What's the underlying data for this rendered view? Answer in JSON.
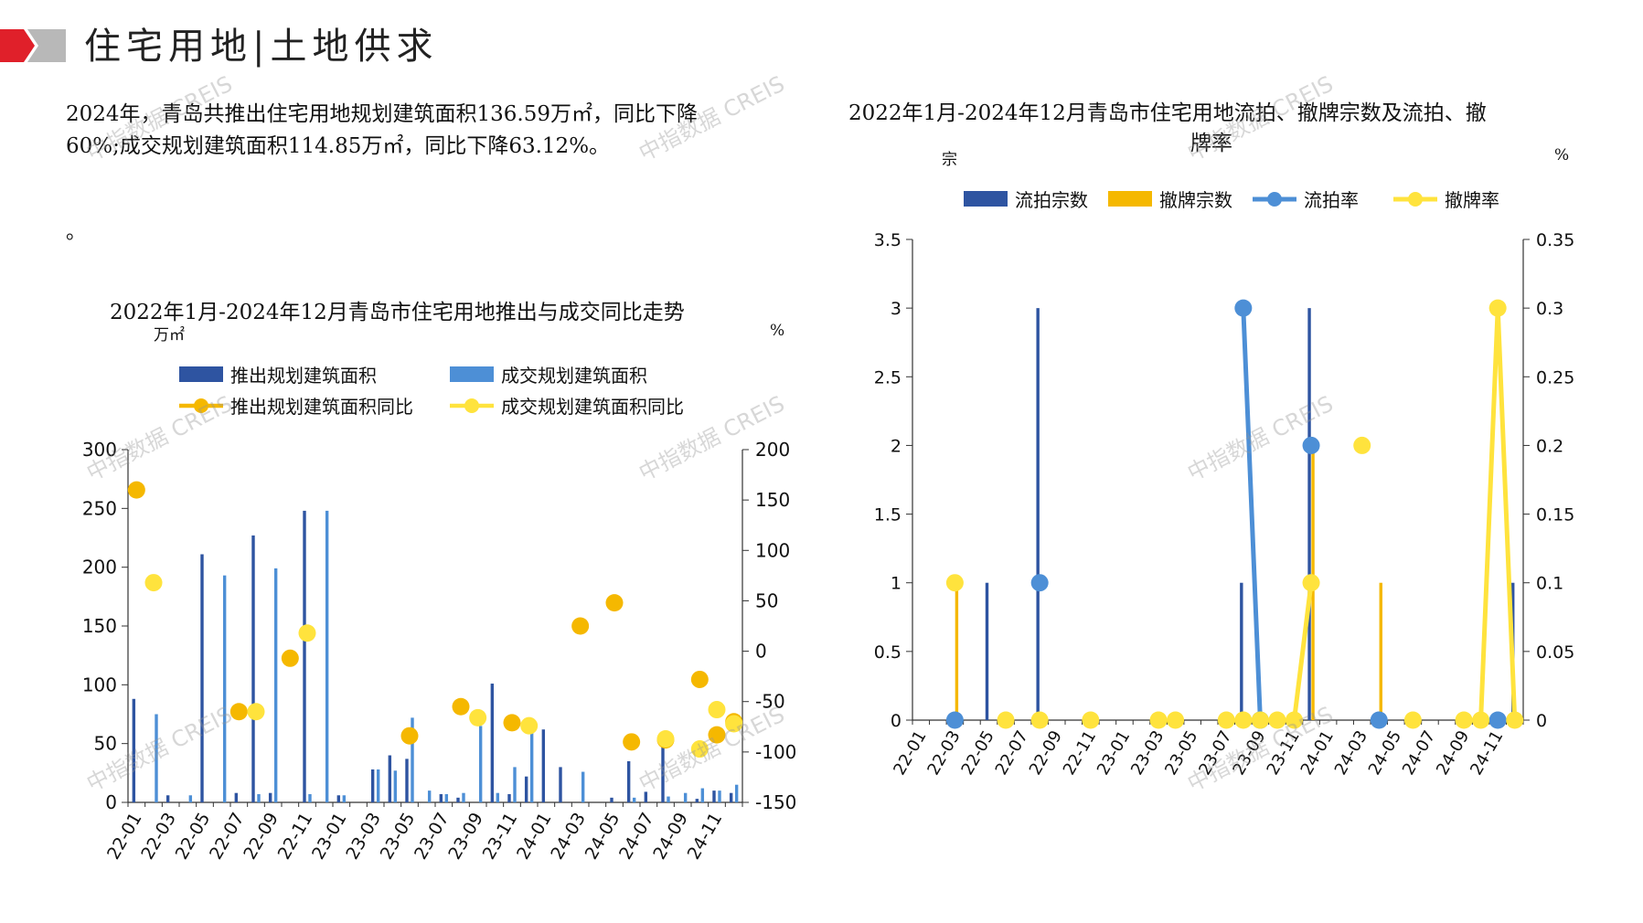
{
  "page": {
    "title": "住宅用地|土地供求",
    "summary": [
      "2024年，青岛共推出住宅用地规划建筑面积136.59万㎡，同比下降",
      "60%;成交规划建筑面积114.85万㎡，同比下降63.12%。"
    ],
    "stray_mark": "。",
    "watermark": "中指数据 CREIS"
  },
  "colors": {
    "dark_blue": "#2e54a1",
    "light_blue": "#4d8fd6",
    "orange": "#f5b800",
    "yellow": "#ffe33d",
    "logo_red": "#e0202a",
    "logo_gray": "#b8b8b8",
    "axis": "#333333"
  },
  "chart_data": [
    {
      "type": "bar",
      "title": "2022年1月-2024年12月青岛市住宅用地推出与成交同比走势",
      "y_unit_left": "万㎡",
      "y_unit_right": "%",
      "ylim_left": [
        0,
        300
      ],
      "yticks_left": [
        "0",
        "50",
        "100",
        "150",
        "200",
        "250",
        "300"
      ],
      "ylim_right": [
        -150,
        200
      ],
      "yticks_right": [
        "-150",
        "-100",
        "-50",
        "0",
        "50",
        "100",
        "150",
        "200"
      ],
      "x_tick_labels": [
        "22-01",
        "22-03",
        "22-05",
        "22-07",
        "22-09",
        "22-11",
        "23-01",
        "23-03",
        "23-05",
        "23-07",
        "23-09",
        "23-11",
        "24-01",
        "24-03",
        "24-05",
        "24-07",
        "24-09",
        "24-11"
      ],
      "categories": [
        "22-01",
        "22-02",
        "22-03",
        "22-04",
        "22-05",
        "22-06",
        "22-07",
        "22-08",
        "22-09",
        "22-10",
        "22-11",
        "22-12",
        "23-01",
        "23-02",
        "23-03",
        "23-04",
        "23-05",
        "23-06",
        "23-07",
        "23-08",
        "23-09",
        "23-10",
        "23-11",
        "23-12",
        "24-01",
        "24-02",
        "24-03",
        "24-04",
        "24-05",
        "24-06",
        "24-07",
        "24-08",
        "24-09",
        "24-10",
        "24-11",
        "24-12"
      ],
      "legend": [
        "推出规划建筑面积",
        "成交规划建筑面积",
        "推出规划建筑面积同比",
        "成交规划建筑面积同比"
      ],
      "series": [
        {
          "name": "推出规划建筑面积",
          "kind": "bar",
          "axis": "left",
          "color": "#2e54a1",
          "values": [
            88,
            0,
            6,
            0,
            211,
            0,
            8,
            227,
            8,
            0,
            248,
            0,
            6,
            0,
            28,
            40,
            37,
            0,
            7,
            4,
            0,
            101,
            7,
            22,
            62,
            30,
            0,
            0,
            4,
            35,
            9,
            50,
            0,
            3,
            10,
            8
          ]
        },
        {
          "name": "成交规划建筑面积",
          "kind": "bar",
          "axis": "left",
          "color": "#4d8fd6",
          "values": [
            0,
            75,
            0,
            6,
            0,
            193,
            0,
            7,
            199,
            0,
            7,
            248,
            6,
            0,
            28,
            27,
            72,
            10,
            7,
            8,
            65,
            8,
            30,
            62,
            0,
            0,
            26,
            0,
            0,
            4,
            0,
            5,
            8,
            12,
            10,
            15
          ]
        },
        {
          "name": "推出规划建筑面积同比",
          "kind": "line",
          "axis": "right",
          "color": "#f5b800",
          "values": [
            160,
            null,
            null,
            null,
            null,
            null,
            -60,
            null,
            null,
            -7,
            null,
            null,
            null,
            null,
            null,
            null,
            -84,
            null,
            null,
            -55,
            null,
            null,
            -71,
            null,
            null,
            null,
            25,
            null,
            48,
            -90,
            null,
            -88,
            null,
            -28,
            -83,
            -70
          ]
        },
        {
          "name": "成交规划建筑面积同比",
          "kind": "line",
          "axis": "right",
          "color": "#ffe33d",
          "values": [
            null,
            68,
            null,
            null,
            null,
            null,
            null,
            -60,
            null,
            null,
            18,
            null,
            null,
            null,
            null,
            null,
            null,
            null,
            null,
            null,
            -66,
            null,
            null,
            -74,
            null,
            null,
            null,
            null,
            null,
            null,
            null,
            -87,
            null,
            -97,
            -58,
            -72
          ]
        }
      ]
    },
    {
      "type": "bar",
      "title": "2022年1月-2024年12月青岛市住宅用地流拍、撤牌宗数及流拍、撤牌率",
      "title_lines": [
        "2022年1月-2024年12月青岛市住宅用地流拍、撤牌宗数及流拍、撤",
        "牌率"
      ],
      "y_unit_left": "宗",
      "y_unit_right": "%",
      "ylim_left": [
        0,
        3.5
      ],
      "yticks_left": [
        "0",
        "0.5",
        "1",
        "1.5",
        "2",
        "2.5",
        "3",
        "3.5"
      ],
      "ylim_right": [
        0,
        0.35
      ],
      "yticks_right": [
        "0",
        "0.05",
        "0.1",
        "0.15",
        "0.2",
        "0.25",
        "0.3",
        "0.35"
      ],
      "x_tick_labels": [
        "22-01",
        "22-03",
        "22-05",
        "22-07",
        "22-09",
        "22-11",
        "23-01",
        "23-03",
        "23-05",
        "23-07",
        "23-09",
        "23-11",
        "24-01",
        "24-03",
        "24-05",
        "24-07",
        "24-09",
        "24-11"
      ],
      "categories": [
        "22-01",
        "22-02",
        "22-03",
        "22-04",
        "22-05",
        "22-06",
        "22-07",
        "22-08",
        "22-09",
        "22-10",
        "22-11",
        "22-12",
        "23-01",
        "23-02",
        "23-03",
        "23-04",
        "23-05",
        "23-06",
        "23-07",
        "23-08",
        "23-09",
        "23-10",
        "23-11",
        "23-12",
        "24-01",
        "24-02",
        "24-03",
        "24-04",
        "24-05",
        "24-06",
        "24-07",
        "24-08",
        "24-09",
        "24-10",
        "24-11",
        "24-12"
      ],
      "legend": [
        "流拍宗数",
        "撤牌宗数",
        "流拍率",
        "撤牌率"
      ],
      "series": [
        {
          "name": "流拍宗数",
          "kind": "bar",
          "axis": "left",
          "color": "#2e54a1",
          "values": [
            0,
            0,
            0,
            0,
            1,
            0,
            0,
            3,
            0,
            0,
            0,
            0,
            0,
            0,
            0,
            0,
            0,
            0,
            0,
            1,
            0,
            0,
            0,
            3,
            0,
            0,
            0,
            0,
            0,
            0,
            0,
            0,
            0,
            0,
            0,
            1
          ]
        },
        {
          "name": "撤牌宗数",
          "kind": "bar",
          "axis": "left",
          "color": "#f5b800",
          "values": [
            0,
            0,
            1,
            0,
            0,
            0,
            0,
            0,
            0,
            0,
            0,
            0,
            0,
            0,
            0,
            0,
            0,
            0,
            0,
            0,
            0,
            0,
            0,
            2,
            0,
            0,
            0,
            1,
            0,
            0,
            0,
            0,
            0,
            0,
            0,
            0
          ]
        },
        {
          "name": "流拍率",
          "kind": "line",
          "axis": "right",
          "color": "#4d8fd6",
          "values": [
            null,
            null,
            0,
            null,
            null,
            null,
            null,
            0.1,
            null,
            null,
            null,
            null,
            null,
            null,
            null,
            null,
            null,
            null,
            null,
            0.3,
            0,
            null,
            null,
            0.2,
            null,
            null,
            null,
            0,
            null,
            null,
            null,
            null,
            null,
            null,
            0,
            null
          ],
          "segments": [
            [
              19,
              20
            ],
            [
              23,
              23
            ]
          ]
        },
        {
          "name": "撤牌率",
          "kind": "line",
          "axis": "right",
          "color": "#ffe33d",
          "values": [
            null,
            null,
            0.1,
            null,
            null,
            0,
            null,
            0,
            null,
            null,
            0,
            null,
            null,
            null,
            0,
            0,
            null,
            null,
            0,
            0,
            0,
            0,
            0,
            0.1,
            null,
            null,
            0.2,
            null,
            null,
            0,
            null,
            null,
            0,
            0,
            0.3,
            0
          ],
          "segments": [
            [
              19,
              23
            ],
            [
              32,
              35
            ]
          ]
        }
      ]
    }
  ]
}
